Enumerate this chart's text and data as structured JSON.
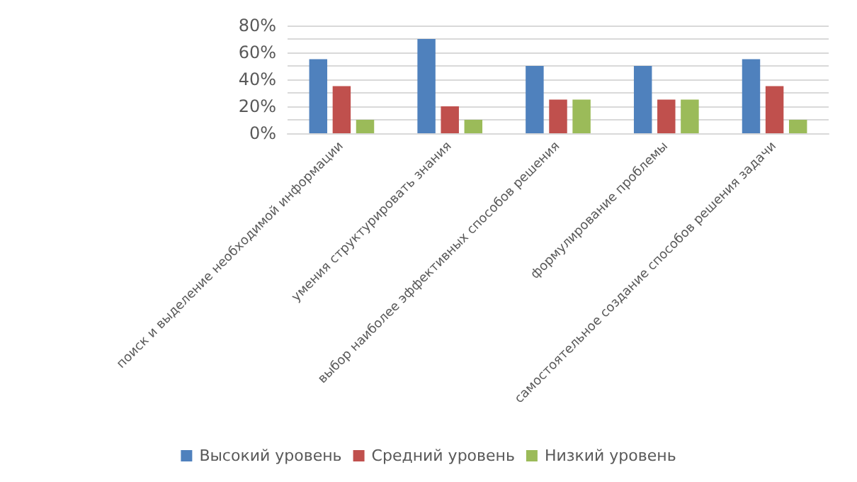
{
  "chart_data": {
    "type": "bar",
    "categories": [
      "поиск и выделение необходимой информации",
      "умения структурировать знания",
      "выбор наиболее эффективных способов решения",
      "формулирование проблемы",
      "самостоятельное создание способов решения задачи"
    ],
    "series": [
      {
        "name": "Высокий уровень",
        "color": "#4f81bd",
        "values": [
          55,
          70,
          50,
          50,
          55
        ]
      },
      {
        "name": "Средний уровень",
        "color": "#c0504d",
        "values": [
          35,
          20,
          25,
          25,
          35
        ]
      },
      {
        "name": "Низкий уровень",
        "color": "#9bbb59",
        "values": [
          10,
          10,
          25,
          25,
          10
        ]
      }
    ],
    "ylim": [
      0,
      80
    ],
    "yticks": [
      {
        "value": 0,
        "label": "0%"
      },
      {
        "value": 10,
        "label": null
      },
      {
        "value": 20,
        "label": "20%"
      },
      {
        "value": 30,
        "label": null
      },
      {
        "value": 40,
        "label": "40%"
      },
      {
        "value": 50,
        "label": null
      },
      {
        "value": 60,
        "label": "60%"
      },
      {
        "value": 70,
        "label": null
      },
      {
        "value": 80,
        "label": "80%"
      }
    ],
    "grid": "y",
    "legend": "bottom"
  }
}
